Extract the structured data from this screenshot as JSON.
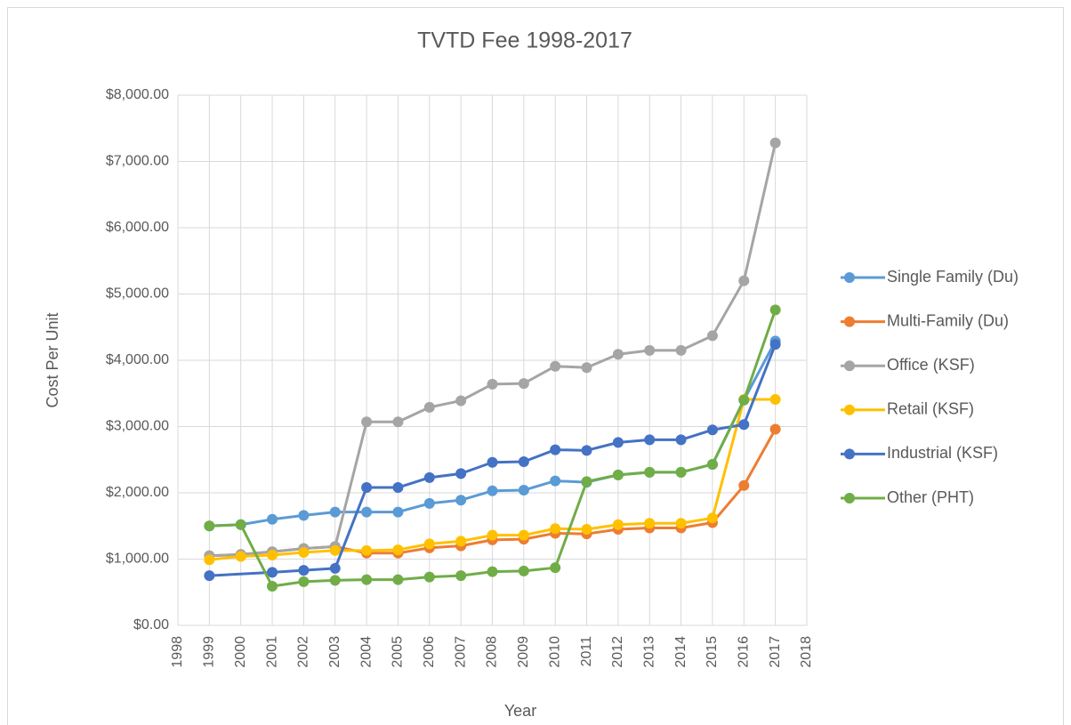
{
  "chart_data": {
    "type": "line",
    "title": "TVTD Fee 1998-2017",
    "x_label": "Year",
    "y_label": "Cost Per Unit",
    "x": [
      1999,
      2000,
      2001,
      2002,
      2003,
      2004,
      2005,
      2006,
      2007,
      2008,
      2009,
      2010,
      2011,
      2012,
      2013,
      2014,
      2015,
      2016,
      2017
    ],
    "xlim": [
      1998,
      2018
    ],
    "xticks": [
      1998,
      1999,
      2000,
      2001,
      2002,
      2003,
      2004,
      2005,
      2006,
      2007,
      2008,
      2009,
      2010,
      2011,
      2012,
      2013,
      2014,
      2015,
      2016,
      2017,
      2018
    ],
    "ylim": [
      0,
      8000
    ],
    "yticks": [
      {
        "value": 0,
        "label": "$0.00"
      },
      {
        "value": 1000,
        "label": "$1,000.00"
      },
      {
        "value": 2000,
        "label": "$2,000.00"
      },
      {
        "value": 3000,
        "label": "$3,000.00"
      },
      {
        "value": 4000,
        "label": "$4,000.00"
      },
      {
        "value": 5000,
        "label": "$5,000.00"
      },
      {
        "value": 6000,
        "label": "$6,000.00"
      },
      {
        "value": 7000,
        "label": "$7,000.00"
      },
      {
        "value": 8000,
        "label": "$8,000.00"
      }
    ],
    "grid": true,
    "legend": "right",
    "series": [
      {
        "name": "Single Family (Du)",
        "color": "#5b9bd5",
        "values": [
          1500,
          1520,
          1600,
          1660,
          1710,
          1710,
          1710,
          1840,
          1890,
          2030,
          2040,
          2180,
          2160,
          2270,
          2310,
          2310,
          2430,
          3400,
          4290
        ]
      },
      {
        "name": "Multi-Family (Du)",
        "color": "#ed7d31",
        "values": [
          1050,
          1070,
          1110,
          1160,
          1190,
          1090,
          1090,
          1170,
          1200,
          1290,
          1300,
          1390,
          1380,
          1450,
          1470,
          1470,
          1550,
          2110,
          2960
        ]
      },
      {
        "name": "Office (KSF)",
        "color": "#a5a5a5",
        "values": [
          1050,
          1070,
          1110,
          1160,
          1190,
          3070,
          3070,
          3290,
          3390,
          3640,
          3650,
          3910,
          3890,
          4090,
          4150,
          4150,
          4370,
          5200,
          7280
        ]
      },
      {
        "name": "Retail (KSF)",
        "color": "#ffc000",
        "values": [
          990,
          1040,
          1060,
          1100,
          1130,
          1130,
          1140,
          1230,
          1270,
          1360,
          1360,
          1460,
          1450,
          1520,
          1540,
          1540,
          1620,
          3410,
          3410
        ]
      },
      {
        "name": "Industrial (KSF)",
        "color": "#4472c4",
        "x": [
          1999,
          2001,
          2002,
          2003,
          2004,
          2005,
          2006,
          2007,
          2008,
          2009,
          2010,
          2011,
          2012,
          2013,
          2014,
          2015,
          2016,
          2017
        ],
        "values": [
          750,
          800,
          830,
          860,
          2080,
          2080,
          2230,
          2290,
          2460,
          2470,
          2650,
          2640,
          2760,
          2800,
          2800,
          2950,
          3030,
          4240
        ]
      },
      {
        "name": "Other (PHT)",
        "color": "#70ad47",
        "values": [
          1500,
          1520,
          590,
          660,
          680,
          690,
          690,
          730,
          750,
          810,
          820,
          870,
          2170,
          2270,
          2310,
          2310,
          2430,
          3400,
          4760
        ]
      }
    ]
  }
}
